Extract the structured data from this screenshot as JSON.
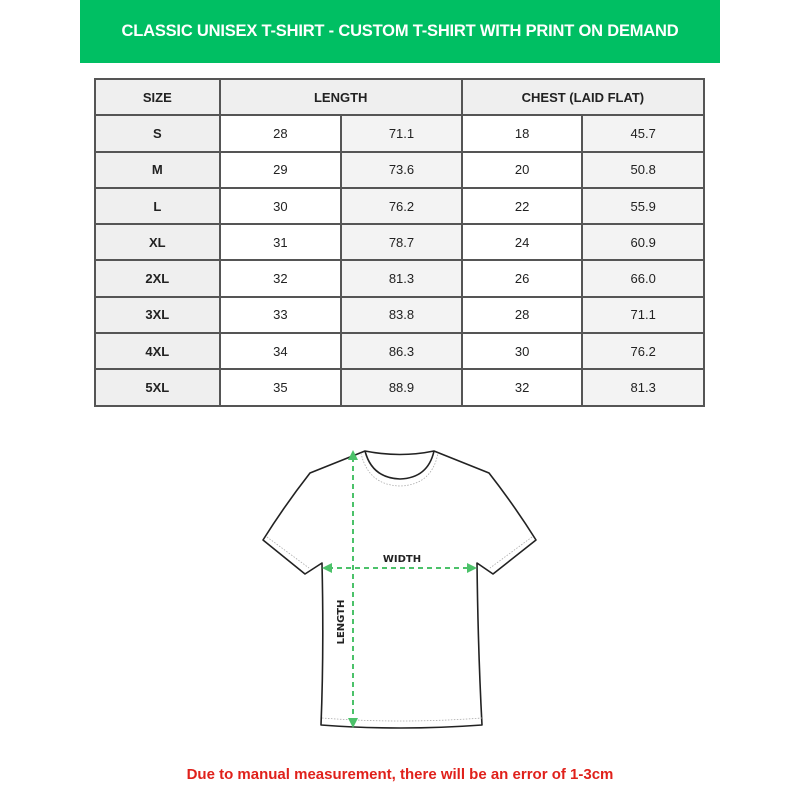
{
  "title": "CLASSIC UNISEX T-SHIRT - CUSTOM T-SHIRT WITH PRINT ON DEMAND",
  "colors": {
    "banner": "#00bf63",
    "arrows": "#4cc26a",
    "footer": "#e0211b"
  },
  "table": {
    "headers": [
      "SIZE",
      "LENGTH",
      "CHEST (LAID FLAT)"
    ],
    "rows": [
      [
        "S",
        "28",
        "71.1",
        "18",
        "45.7"
      ],
      [
        "M",
        "29",
        "73.6",
        "20",
        "50.8"
      ],
      [
        "L",
        "30",
        "76.2",
        "22",
        "55.9"
      ],
      [
        "XL",
        "31",
        "78.7",
        "24",
        "60.9"
      ],
      [
        "2XL",
        "32",
        "81.3",
        "26",
        "66.0"
      ],
      [
        "3XL",
        "33",
        "83.8",
        "28",
        "71.1"
      ],
      [
        "4XL",
        "34",
        "86.3",
        "30",
        "76.2"
      ],
      [
        "5XL",
        "35",
        "88.9",
        "32",
        "81.3"
      ]
    ]
  },
  "diagram": {
    "width_label": "WIDTH",
    "length_label": "LENGTH"
  },
  "footer": "Due to manual measurement, there will be an error of 1-3cm"
}
